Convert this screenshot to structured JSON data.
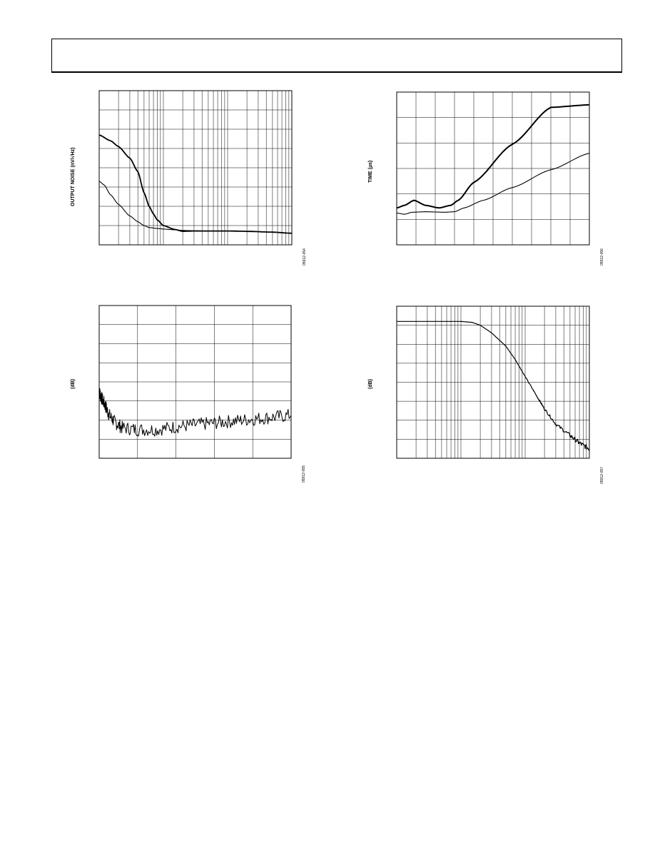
{
  "page": {
    "figure_codes": [
      "05912-054",
      "05912-056",
      "05912-055",
      "05912-057"
    ]
  },
  "chart_data": [
    {
      "type": "line",
      "ylabel": "OUTPUT NOISE (nV/√Hz)",
      "xlabel": "",
      "xscale": "log",
      "xlim": [
        1,
        1000
      ],
      "ylim": [
        0,
        8
      ],
      "grid": true,
      "series": [
        {
          "x": [
            1,
            1.5,
            2,
            3,
            4,
            5,
            6,
            7,
            8,
            10,
            15,
            20,
            30,
            50,
            100,
            200,
            500,
            1000
          ],
          "values": [
            5.7,
            5.4,
            5.1,
            4.5,
            3.8,
            2.7,
            2.0,
            1.6,
            1.3,
            1.0,
            0.8,
            0.7,
            0.72,
            0.72,
            0.72,
            0.7,
            0.66,
            0.6
          ]
        },
        {
          "x": [
            1,
            1.2,
            1.5,
            2,
            3,
            4,
            5,
            6,
            8,
            10,
            15,
            20,
            30,
            50,
            100,
            200,
            500,
            1000
          ],
          "values": [
            3.3,
            3.1,
            2.6,
            2.1,
            1.5,
            1.2,
            1.0,
            0.9,
            0.85,
            0.82,
            0.78,
            0.75,
            0.73,
            0.72,
            0.72,
            0.7,
            0.66,
            0.6
          ]
        }
      ]
    },
    {
      "type": "line",
      "ylabel": "TIME (µs)",
      "xlabel": "",
      "xlim": [
        0,
        10
      ],
      "ylim": [
        0,
        6
      ],
      "grid": true,
      "series": [
        {
          "x": [
            0,
            0.4,
            0.9,
            1.5,
            2.2,
            2.8,
            3.2,
            4,
            6,
            8,
            10
          ],
          "values": [
            1.45,
            1.55,
            1.75,
            1.55,
            1.45,
            1.55,
            1.75,
            2.45,
            3.95,
            5.4,
            5.5
          ]
        },
        {
          "x": [
            0,
            0.4,
            0.8,
            1.5,
            2.5,
            3.0,
            3.5,
            4.5,
            6,
            8,
            10
          ],
          "values": [
            1.25,
            1.2,
            1.28,
            1.3,
            1.28,
            1.3,
            1.45,
            1.75,
            2.25,
            2.95,
            3.6
          ]
        }
      ]
    },
    {
      "type": "line",
      "ylabel": "(dB)",
      "xlabel": "",
      "xlim": [
        0,
        10
      ],
      "ylim": [
        0,
        8
      ],
      "grid": true,
      "series": [
        {
          "x": [
            0,
            0.1,
            0.3,
            0.5,
            0.8,
            1.2,
            2,
            3,
            4,
            5,
            6,
            7,
            8,
            9,
            10
          ],
          "values": [
            3.5,
            3.2,
            2.8,
            2.3,
            1.9,
            1.6,
            1.5,
            1.5,
            1.65,
            1.75,
            1.85,
            1.95,
            2.05,
            2.15,
            2.25
          ]
        }
      ]
    },
    {
      "type": "line",
      "ylabel": "(dB)",
      "xlabel": "",
      "xscale": "log",
      "xlim": [
        1,
        1000
      ],
      "ylim": [
        0,
        8
      ],
      "grid": true,
      "series": [
        {
          "x": [
            1,
            3,
            10,
            15,
            20,
            30,
            50,
            70,
            100,
            150,
            200,
            300,
            500,
            700,
            1000
          ],
          "values": [
            7.2,
            7.2,
            7.2,
            7.15,
            7.0,
            6.6,
            5.9,
            5.2,
            4.3,
            3.3,
            2.6,
            1.8,
            1.2,
            0.8,
            0.5
          ]
        }
      ]
    }
  ]
}
